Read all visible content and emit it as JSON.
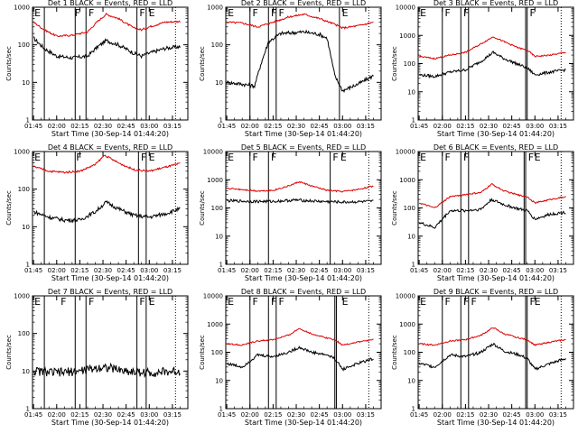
{
  "figure": {
    "panels": [
      {
        "title": "Det 1 BLACK = Events, RED = LLD",
        "ylabel": "Counts/sec",
        "xlabel": "Start Time (30-Sep-14 01:44:20)"
      },
      {
        "title": "Det 2 BLACK = Events, RED = LLD",
        "ylabel": "Counts/sec",
        "xlabel": "Start Time (30-Sep-14 01:44:20)"
      },
      {
        "title": "Det 3 BLACK = Events, RED = LLD",
        "ylabel": "Counts/sec",
        "xlabel": "Start Time (30-Sep-14 01:44:20)"
      },
      {
        "title": "Det 4 BLACK = Events, RED = LLD",
        "ylabel": "Counts/sec",
        "xlabel": "Start Time (30-Sep-14 01:44:20)"
      },
      {
        "title": "Det 5 BLACK = Events, RED = LLD",
        "ylabel": "Counts/sec",
        "xlabel": "Start Time (30-Sep-14 01:44:20)"
      },
      {
        "title": "Det 6 BLACK = Events, RED = LLD",
        "ylabel": "Counts/sec",
        "xlabel": "Start Time (30-Sep-14 01:44:20)"
      },
      {
        "title": "Det 7 BLACK = Events, RED = LLD",
        "ylabel": "Counts/sec",
        "xlabel": "Start Time (30-Sep-14 01:44:20)"
      },
      {
        "title": "Det 8 BLACK = Events, RED = LLD",
        "ylabel": "Counts/sec",
        "xlabel": "Start Time (30-Sep-14 01:44:20)"
      },
      {
        "title": "Det 9 BLACK = Events, RED = LLD",
        "ylabel": "Counts/sec",
        "xlabel": "Start Time (30-Sep-14 01:44:20)"
      }
    ]
  },
  "chart_data": [
    {
      "type": "line",
      "panel": 1,
      "ylim": [
        1,
        1000
      ],
      "yscale": "log",
      "ytick_labels": [
        "1",
        "10",
        "100",
        "1000"
      ],
      "xlim": [
        "01:44:20",
        "03:25:00"
      ],
      "xtick_labels": [
        "01:45",
        "02:00",
        "02:15",
        "02:30",
        "02:45",
        "03:00",
        "03:15"
      ],
      "solid_markers": [
        "01:52",
        "02:12",
        "02:19",
        "02:52",
        "02:58"
      ],
      "dotted_markers": [
        "03:17"
      ],
      "flag_labels": [
        {
          "x": "01:45",
          "t": "E"
        },
        {
          "x": "02:11",
          "t": "F"
        },
        {
          "x": "02:20",
          "t": "F"
        },
        {
          "x": "02:53",
          "t": "F"
        },
        {
          "x": "02:59",
          "t": "E"
        }
      ],
      "series": [
        {
          "color": "#000000",
          "x": [
            "01:45",
            "01:52",
            "02:00",
            "02:10",
            "02:20",
            "02:26",
            "02:32",
            "02:40",
            "02:50",
            "02:55",
            "03:00",
            "03:10",
            "03:20"
          ],
          "y": [
            150,
            80,
            50,
            45,
            50,
            85,
            130,
            100,
            60,
            50,
            60,
            80,
            90
          ]
        },
        {
          "color": "#dd0000",
          "x": [
            "01:45",
            "01:52",
            "02:00",
            "02:10",
            "02:20",
            "02:26",
            "02:32",
            "02:40",
            "02:50",
            "02:55",
            "03:00",
            "03:10",
            "03:20"
          ],
          "y": [
            400,
            250,
            170,
            180,
            220,
            400,
            650,
            500,
            280,
            250,
            300,
            400,
            420
          ]
        }
      ]
    },
    {
      "type": "line",
      "panel": 2,
      "ylim": [
        1,
        1000
      ],
      "yscale": "log",
      "ytick_labels": [
        "1",
        "10",
        "100",
        "1000"
      ],
      "xlim": [
        "01:44:20",
        "03:25:00"
      ],
      "xtick_labels": [
        "01:45",
        "02:00",
        "02:15",
        "02:30",
        "02:45",
        "03:00",
        "03:15"
      ],
      "solid_markers": [
        "02:00",
        "02:12",
        "02:17",
        "02:58"
      ],
      "dotted_markers": [
        "03:17"
      ],
      "flag_labels": [
        {
          "x": "01:45",
          "t": "E"
        },
        {
          "x": "02:01",
          "t": "F"
        },
        {
          "x": "02:13",
          "t": "F"
        },
        {
          "x": "02:18",
          "t": "F"
        },
        {
          "x": "02:59",
          "t": "E"
        }
      ],
      "series": [
        {
          "color": "#000000",
          "x": [
            "01:45",
            "01:55",
            "02:03",
            "02:07",
            "02:12",
            "02:20",
            "02:35",
            "02:45",
            "02:50",
            "02:55",
            "03:00",
            "03:10",
            "03:20"
          ],
          "y": [
            10,
            9,
            8,
            30,
            120,
            200,
            220,
            190,
            150,
            15,
            6,
            9,
            15
          ]
        },
        {
          "color": "#dd0000",
          "x": [
            "01:45",
            "01:55",
            "02:05",
            "02:15",
            "02:25",
            "02:35",
            "02:45",
            "02:55",
            "03:00",
            "03:10",
            "03:20"
          ],
          "y": [
            400,
            380,
            300,
            400,
            550,
            650,
            500,
            350,
            280,
            320,
            400
          ]
        }
      ]
    },
    {
      "type": "line",
      "panel": 3,
      "ylim": [
        1,
        10000
      ],
      "yscale": "log",
      "ytick_labels": [
        "1",
        "10",
        "100",
        "1000",
        "10000"
      ],
      "xlim": [
        "01:44:20",
        "03:25:00"
      ],
      "xtick_labels": [
        "01:45",
        "02:00",
        "02:15",
        "02:30",
        "02:45",
        "03:00",
        "03:15"
      ],
      "solid_markers": [
        "02:00",
        "02:12",
        "02:17",
        "02:54",
        "02:55"
      ],
      "dotted_markers": [
        "03:17"
      ],
      "flag_labels": [
        {
          "x": "01:45",
          "t": "E"
        },
        {
          "x": "02:01",
          "t": "F"
        },
        {
          "x": "02:13",
          "t": "F"
        },
        {
          "x": "02:56",
          "t": "F"
        }
      ],
      "series": [
        {
          "color": "#000000",
          "x": [
            "01:45",
            "01:55",
            "02:05",
            "02:15",
            "02:25",
            "02:33",
            "02:40",
            "02:50",
            "02:55",
            "03:00",
            "03:10",
            "03:20"
          ],
          "y": [
            40,
            35,
            50,
            60,
            120,
            250,
            150,
            90,
            70,
            40,
            50,
            60
          ]
        },
        {
          "color": "#dd0000",
          "x": [
            "01:45",
            "01:55",
            "02:05",
            "02:15",
            "02:25",
            "02:33",
            "02:40",
            "02:50",
            "02:55",
            "03:00",
            "03:10",
            "03:20"
          ],
          "y": [
            180,
            150,
            200,
            250,
            500,
            900,
            600,
            350,
            300,
            180,
            200,
            250
          ]
        }
      ]
    },
    {
      "type": "line",
      "panel": 4,
      "ylim": [
        1,
        1000
      ],
      "yscale": "log",
      "ytick_labels": [
        "1",
        "10",
        "100",
        "1000"
      ],
      "xlim": [
        "01:44:20",
        "03:25:00"
      ],
      "xtick_labels": [
        "01:45",
        "02:00",
        "02:15",
        "02:30",
        "02:45",
        "03:00",
        "03:15"
      ],
      "solid_markers": [
        "01:52",
        "02:12",
        "02:53",
        "02:58"
      ],
      "dotted_markers": [
        "03:17"
      ],
      "flag_labels": [
        {
          "x": "01:45",
          "t": "E"
        },
        {
          "x": "02:12",
          "t": "F"
        },
        {
          "x": "02:54",
          "t": "F"
        },
        {
          "x": "02:59",
          "t": "E"
        }
      ],
      "series": [
        {
          "color": "#000000",
          "x": [
            "01:45",
            "01:55",
            "02:05",
            "02:15",
            "02:25",
            "02:32",
            "02:40",
            "02:50",
            "03:00",
            "03:10",
            "03:20"
          ],
          "y": [
            25,
            18,
            15,
            15,
            25,
            45,
            30,
            20,
            18,
            22,
            30
          ]
        },
        {
          "color": "#dd0000",
          "x": [
            "01:45",
            "01:55",
            "02:05",
            "02:15",
            "02:25",
            "02:31",
            "02:40",
            "02:50",
            "03:00",
            "03:10",
            "03:20"
          ],
          "y": [
            400,
            300,
            280,
            300,
            450,
            800,
            500,
            330,
            300,
            380,
            480
          ]
        }
      ]
    },
    {
      "type": "line",
      "panel": 5,
      "ylim": [
        1,
        10000
      ],
      "yscale": "log",
      "ytick_labels": [
        "1",
        "10",
        "100",
        "1000",
        "10000"
      ],
      "xlim": [
        "01:44:20",
        "03:25:00"
      ],
      "xtick_labels": [
        "01:45",
        "02:00",
        "02:15",
        "02:30",
        "02:45",
        "03:00",
        "03:15"
      ],
      "solid_markers": [
        "02:00",
        "02:12",
        "02:52"
      ],
      "dotted_markers": [
        "03:17"
      ],
      "flag_labels": [
        {
          "x": "01:45",
          "t": "E"
        },
        {
          "x": "02:01",
          "t": "F"
        },
        {
          "x": "02:13",
          "t": "F"
        },
        {
          "x": "02:53",
          "t": "F"
        },
        {
          "x": "02:58",
          "t": "E"
        }
      ],
      "series": [
        {
          "color": "#000000",
          "x": [
            "01:45",
            "02:00",
            "02:15",
            "02:30",
            "02:45",
            "03:00",
            "03:20"
          ],
          "y": [
            180,
            170,
            170,
            190,
            170,
            160,
            170
          ]
        },
        {
          "color": "#dd0000",
          "x": [
            "01:45",
            "01:55",
            "02:05",
            "02:15",
            "02:25",
            "02:32",
            "02:40",
            "02:50",
            "03:00",
            "03:10",
            "03:20"
          ],
          "y": [
            500,
            450,
            400,
            420,
            600,
            850,
            600,
            420,
            380,
            450,
            600
          ]
        }
      ]
    },
    {
      "type": "line",
      "panel": 6,
      "ylim": [
        1,
        10000
      ],
      "yscale": "log",
      "ytick_labels": [
        "1",
        "10",
        "100",
        "1000",
        "10000"
      ],
      "xlim": [
        "01:44:20",
        "03:25:00"
      ],
      "xtick_labels": [
        "01:45",
        "02:00",
        "02:15",
        "02:30",
        "02:45",
        "03:00",
        "03:15"
      ],
      "solid_markers": [
        "02:00",
        "02:12",
        "02:17",
        "02:53",
        "02:54"
      ],
      "dotted_markers": [
        "03:17"
      ],
      "flag_labels": [
        {
          "x": "01:45",
          "t": "E"
        },
        {
          "x": "02:01",
          "t": "F"
        },
        {
          "x": "02:13",
          "t": "F"
        },
        {
          "x": "02:55",
          "t": "F"
        },
        {
          "x": "02:59",
          "t": "E"
        }
      ],
      "series": [
        {
          "color": "#000000",
          "x": [
            "01:45",
            "01:55",
            "02:05",
            "02:15",
            "02:25",
            "02:32",
            "02:40",
            "02:50",
            "02:55",
            "03:00",
            "03:10",
            "03:20"
          ],
          "y": [
            30,
            20,
            80,
            80,
            90,
            200,
            130,
            90,
            80,
            40,
            60,
            70
          ]
        },
        {
          "color": "#dd0000",
          "x": [
            "01:45",
            "01:55",
            "02:05",
            "02:15",
            "02:25",
            "02:32",
            "02:40",
            "02:50",
            "02:55",
            "03:00",
            "03:10",
            "03:20"
          ],
          "y": [
            150,
            100,
            250,
            300,
            350,
            700,
            400,
            280,
            250,
            150,
            200,
            250
          ]
        }
      ]
    },
    {
      "type": "line",
      "panel": 7,
      "ylim": [
        1,
        1000
      ],
      "yscale": "log",
      "ytick_labels": [
        "1",
        "10",
        "100",
        "1000"
      ],
      "xlim": [
        "01:44:20",
        "03:25:00"
      ],
      "xtick_labels": [
        "01:45",
        "02:00",
        "02:15",
        "02:30",
        "02:45",
        "03:00",
        "03:15"
      ],
      "solid_markers": [
        "01:52",
        "02:12",
        "02:19",
        "02:52",
        "02:58"
      ],
      "dotted_markers": [
        "03:17"
      ],
      "flag_labels": [
        {
          "x": "01:45",
          "t": "E"
        },
        {
          "x": "02:02",
          "t": "F"
        },
        {
          "x": "02:20",
          "t": "F"
        },
        {
          "x": "02:53",
          "t": "F"
        },
        {
          "x": "02:59",
          "t": "E"
        }
      ],
      "series": [
        {
          "color": "#000000",
          "x": [
            "01:45",
            "02:00",
            "02:15",
            "02:30",
            "02:45",
            "03:00",
            "03:20"
          ],
          "y": [
            10,
            9,
            10,
            13,
            10,
            9,
            10
          ]
        }
      ]
    },
    {
      "type": "line",
      "panel": 8,
      "ylim": [
        1,
        10000
      ],
      "yscale": "log",
      "ytick_labels": [
        "1",
        "10",
        "100",
        "1000",
        "10000"
      ],
      "xlim": [
        "01:44:20",
        "03:25:00"
      ],
      "xtick_labels": [
        "01:45",
        "02:00",
        "02:15",
        "02:30",
        "02:45",
        "03:00",
        "03:15"
      ],
      "solid_markers": [
        "02:00",
        "02:12",
        "02:17",
        "02:55",
        "02:56"
      ],
      "dotted_markers": [
        "03:17"
      ],
      "flag_labels": [
        {
          "x": "01:45",
          "t": "E"
        },
        {
          "x": "02:01",
          "t": "F"
        },
        {
          "x": "02:13",
          "t": "F"
        },
        {
          "x": "02:18",
          "t": "F"
        },
        {
          "x": "02:59",
          "t": "E"
        }
      ],
      "series": [
        {
          "color": "#000000",
          "x": [
            "01:45",
            "01:55",
            "02:05",
            "02:15",
            "02:25",
            "02:32",
            "02:40",
            "02:50",
            "02:55",
            "03:00",
            "03:10",
            "03:20"
          ],
          "y": [
            40,
            30,
            80,
            70,
            100,
            150,
            100,
            80,
            60,
            25,
            40,
            60
          ]
        },
        {
          "color": "#dd0000",
          "x": [
            "01:45",
            "01:55",
            "02:05",
            "02:15",
            "02:25",
            "02:32",
            "02:40",
            "02:50",
            "02:55",
            "03:00",
            "03:10",
            "03:20"
          ],
          "y": [
            200,
            180,
            250,
            280,
            400,
            700,
            450,
            320,
            280,
            180,
            230,
            280
          ]
        }
      ]
    },
    {
      "type": "line",
      "panel": 9,
      "ylim": [
        1,
        10000
      ],
      "yscale": "log",
      "ytick_labels": [
        "1",
        "10",
        "100",
        "1000",
        "10000"
      ],
      "xlim": [
        "01:44:20",
        "03:25:00"
      ],
      "xtick_labels": [
        "01:45",
        "02:00",
        "02:15",
        "02:30",
        "02:45",
        "03:00",
        "03:15"
      ],
      "solid_markers": [
        "02:00",
        "02:12",
        "02:17",
        "02:54",
        "02:55"
      ],
      "dotted_markers": [
        "03:17"
      ],
      "flag_labels": [
        {
          "x": "01:45",
          "t": "E"
        },
        {
          "x": "02:01",
          "t": "F"
        },
        {
          "x": "02:13",
          "t": "F"
        },
        {
          "x": "02:18",
          "t": "F"
        },
        {
          "x": "02:56",
          "t": "F"
        },
        {
          "x": "02:59",
          "t": "E"
        }
      ],
      "series": [
        {
          "color": "#000000",
          "x": [
            "01:45",
            "01:55",
            "02:05",
            "02:15",
            "02:25",
            "02:33",
            "02:40",
            "02:50",
            "02:55",
            "03:00",
            "03:10",
            "03:20"
          ],
          "y": [
            40,
            30,
            80,
            70,
            100,
            200,
            110,
            80,
            60,
            25,
            40,
            60
          ]
        },
        {
          "color": "#dd0000",
          "x": [
            "01:45",
            "01:55",
            "02:05",
            "02:15",
            "02:25",
            "02:33",
            "02:40",
            "02:50",
            "02:55",
            "03:00",
            "03:10",
            "03:20"
          ],
          "y": [
            200,
            180,
            250,
            280,
            400,
            750,
            450,
            320,
            280,
            180,
            230,
            280
          ]
        }
      ]
    }
  ]
}
